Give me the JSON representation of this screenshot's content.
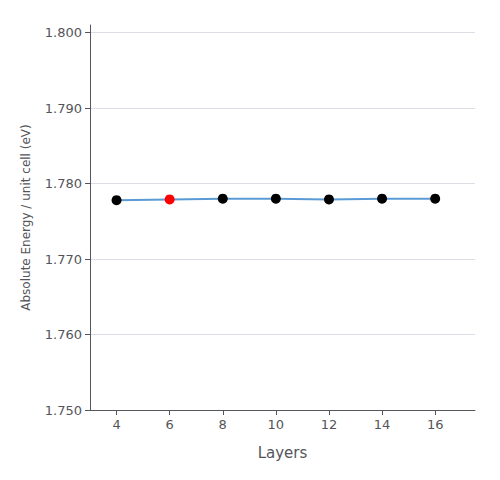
{
  "chart_data": {
    "type": "line",
    "xlabel": "Layers",
    "ylabel": "Absolute Energy / unit cell (eV)",
    "x": [
      4,
      6,
      8,
      10,
      12,
      14,
      16
    ],
    "values": [
      1.7778,
      1.7779,
      1.778,
      1.778,
      1.7779,
      1.778,
      1.778
    ],
    "color": "#5B9BD5",
    "colors": [
      "black",
      "red",
      "black",
      "black",
      "black",
      "black",
      "black"
    ],
    "xlim": [
      3.0,
      17.5
    ],
    "ylim": [
      1.75,
      1.801
    ],
    "xticks": [
      4,
      6,
      8,
      10,
      12,
      14,
      16
    ],
    "yticks": [
      {
        "value": 1.75,
        "label": "1.750"
      },
      {
        "value": 1.76,
        "label": "1.760"
      },
      {
        "value": 1.77,
        "label": "1.770"
      },
      {
        "value": 1.78,
        "label": "1.780"
      },
      {
        "value": 1.79,
        "label": "1.790"
      },
      {
        "value": 1.8,
        "label": "1.800"
      }
    ],
    "grid": true
  }
}
